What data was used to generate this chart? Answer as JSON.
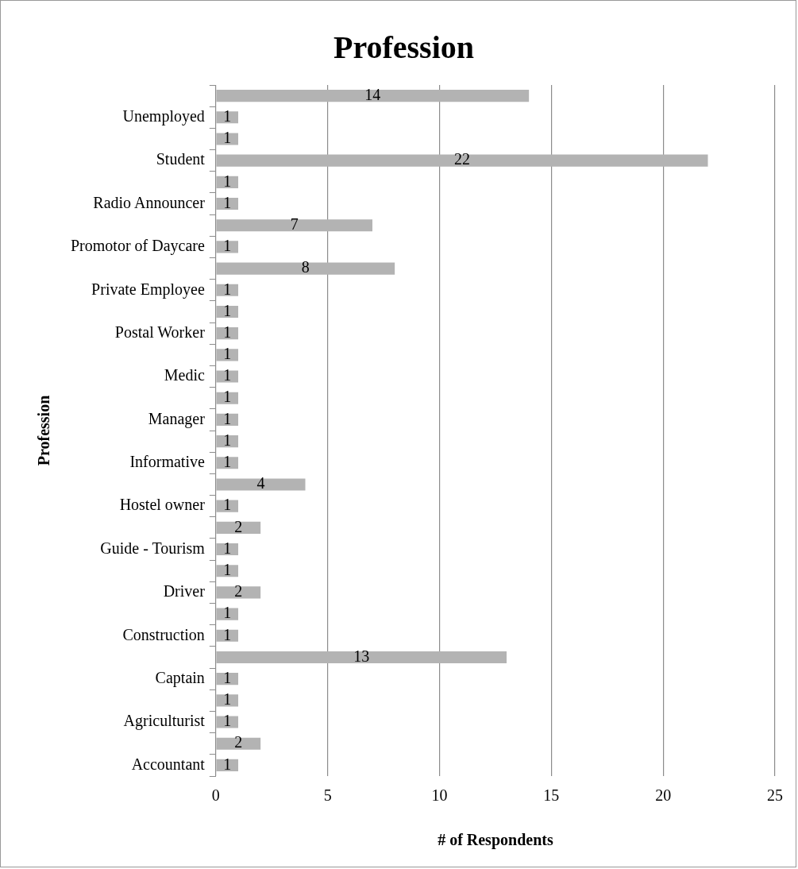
{
  "chart_data": {
    "type": "bar",
    "orientation": "horizontal",
    "title": "Profession",
    "xlabel": "# of Respondents",
    "ylabel": "Profession",
    "categories": [
      null,
      "Unemployed",
      null,
      "Student",
      null,
      "Radio Announcer",
      null,
      "Promotor of Daycare",
      null,
      "Private Employee",
      null,
      "Postal Worker",
      null,
      "Medic",
      null,
      "Manager",
      null,
      "Informative",
      null,
      "Hostel owner",
      null,
      "Guide - Tourism",
      null,
      "Driver",
      null,
      "Construction",
      null,
      "Captain",
      null,
      "Agriculturist",
      null,
      "Accountant"
    ],
    "values": [
      14,
      1,
      1,
      22,
      1,
      1,
      7,
      1,
      8,
      1,
      1,
      1,
      1,
      1,
      1,
      1,
      1,
      1,
      4,
      1,
      2,
      1,
      1,
      2,
      1,
      1,
      13,
      1,
      1,
      1,
      2,
      1
    ],
    "color": "#b3b3b3",
    "xlim": [
      0,
      25
    ],
    "xticks": [
      0,
      5,
      10,
      15,
      20,
      25
    ],
    "grid": "x",
    "data_labels": true
  }
}
